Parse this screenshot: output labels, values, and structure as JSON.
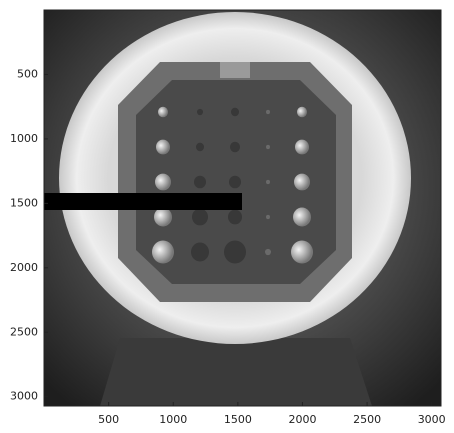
{
  "chart_data": {
    "type": "image",
    "xlim": [
      0,
      3072
    ],
    "ylim": [
      3072,
      0
    ],
    "xticks": [
      500,
      1000,
      1500,
      2000,
      2500,
      3000
    ],
    "yticks": [
      500,
      1000,
      1500,
      2000,
      2500,
      3000
    ]
  }
}
